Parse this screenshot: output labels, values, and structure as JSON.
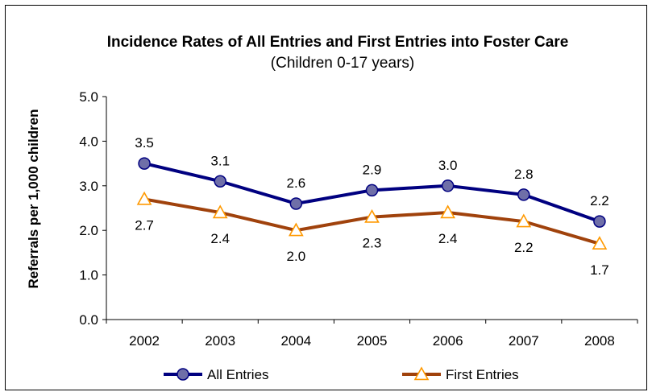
{
  "chart_data": {
    "type": "line",
    "title": "Incidence Rates of All Entries and First Entries into Foster Care",
    "subtitle": "(Children 0-17 years)",
    "xlabel": "",
    "ylabel": "Referrals per 1,000 children",
    "categories": [
      "2002",
      "2003",
      "2004",
      "2005",
      "2006",
      "2007",
      "2008"
    ],
    "ylim": [
      0,
      5
    ],
    "yticks": [
      "0.0",
      "1.0",
      "2.0",
      "3.0",
      "4.0",
      "5.0"
    ],
    "grid": false,
    "legend_position": "bottom",
    "series": [
      {
        "name": "All Entries",
        "values": [
          3.5,
          3.1,
          2.6,
          2.9,
          3.0,
          2.8,
          2.2
        ],
        "labels": [
          "3.5",
          "3.1",
          "2.6",
          "2.9",
          "3.0",
          "2.8",
          "2.2"
        ],
        "line_color": "#000080",
        "marker": "circle",
        "marker_fill": "#6f6fa8",
        "label_position": "above"
      },
      {
        "name": "First Entries",
        "values": [
          2.7,
          2.4,
          2.0,
          2.3,
          2.4,
          2.2,
          1.7
        ],
        "labels": [
          "2.7",
          "2.4",
          "2.0",
          "2.3",
          "2.4",
          "2.2",
          "1.7"
        ],
        "line_color": "#a0420c",
        "marker": "triangle",
        "marker_stroke": "#ff9900",
        "marker_fill": "#ffffff",
        "label_position": "below"
      }
    ]
  }
}
